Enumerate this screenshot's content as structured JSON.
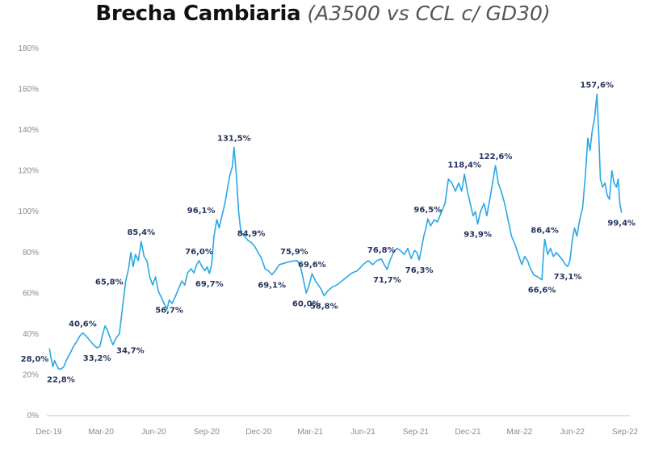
{
  "chart_data": {
    "type": "line",
    "title": "Brecha Cambiaria",
    "subtitle": "(A3500 vs CCL c/ GD30)",
    "xlabel": "",
    "ylabel": "",
    "ylim": [
      0,
      180
    ],
    "yticks": [
      "0%",
      "20%",
      "40%",
      "60%",
      "80%",
      "100%",
      "120%",
      "140%",
      "160%",
      "180%"
    ],
    "xticks": [
      "Dec-19",
      "Mar-20",
      "Jun-20",
      "Sep-20",
      "Dec-20",
      "Mar-21",
      "Jun-21",
      "Sep-21",
      "Dec-21",
      "Mar-22",
      "Jun-22",
      "Sep-22"
    ],
    "xtick_dates": [
      "2019-12-01",
      "2020-03-01",
      "2020-06-01",
      "2020-09-01",
      "2020-12-01",
      "2021-03-01",
      "2021-06-01",
      "2021-09-01",
      "2021-12-01",
      "2022-03-01",
      "2022-06-01",
      "2022-09-01"
    ],
    "grid": false,
    "line_color": "#2aa7e6",
    "label_color": "#26335e",
    "series": [
      {
        "points": [
          [
            "2019-12-02",
            33
          ],
          [
            "2019-12-05",
            28.0
          ],
          [
            "2019-12-08",
            24
          ],
          [
            "2019-12-11",
            27
          ],
          [
            "2019-12-14",
            25
          ],
          [
            "2019-12-18",
            23
          ],
          [
            "2019-12-22",
            22.8
          ],
          [
            "2019-12-27",
            24
          ],
          [
            "2020-01-02",
            28
          ],
          [
            "2020-01-08",
            31
          ],
          [
            "2020-01-13",
            34
          ],
          [
            "2020-01-18",
            36
          ],
          [
            "2020-01-24",
            39
          ],
          [
            "2020-01-29",
            40.6
          ],
          [
            "2020-02-04",
            39
          ],
          [
            "2020-02-10",
            37
          ],
          [
            "2020-02-16",
            35
          ],
          [
            "2020-02-23",
            33.2
          ],
          [
            "2020-02-28",
            34
          ],
          [
            "2020-03-04",
            40
          ],
          [
            "2020-03-08",
            44
          ],
          [
            "2020-03-12",
            42
          ],
          [
            "2020-03-17",
            38
          ],
          [
            "2020-03-22",
            34.7
          ],
          [
            "2020-03-27",
            38
          ],
          [
            "2020-04-02",
            40
          ],
          [
            "2020-04-07",
            52
          ],
          [
            "2020-04-13",
            65.8
          ],
          [
            "2020-04-18",
            72
          ],
          [
            "2020-04-22",
            80
          ],
          [
            "2020-04-26",
            73
          ],
          [
            "2020-04-30",
            79
          ],
          [
            "2020-05-05",
            76
          ],
          [
            "2020-05-10",
            85.4
          ],
          [
            "2020-05-15",
            78
          ],
          [
            "2020-05-20",
            76
          ],
          [
            "2020-05-25",
            68
          ],
          [
            "2020-05-30",
            64
          ],
          [
            "2020-06-04",
            68
          ],
          [
            "2020-06-09",
            61
          ],
          [
            "2020-06-14",
            58
          ],
          [
            "2020-06-19",
            55
          ],
          [
            "2020-06-24",
            52
          ],
          [
            "2020-06-28",
            56.7
          ],
          [
            "2020-07-03",
            55
          ],
          [
            "2020-07-08",
            58
          ],
          [
            "2020-07-14",
            62
          ],
          [
            "2020-07-20",
            66
          ],
          [
            "2020-07-25",
            64
          ],
          [
            "2020-07-30",
            70
          ],
          [
            "2020-08-05",
            72
          ],
          [
            "2020-08-10",
            70
          ],
          [
            "2020-08-15",
            74
          ],
          [
            "2020-08-19",
            76.0
          ],
          [
            "2020-08-24",
            73
          ],
          [
            "2020-08-29",
            71
          ],
          [
            "2020-09-02",
            73
          ],
          [
            "2020-09-06",
            69.7
          ],
          [
            "2020-09-10",
            74
          ],
          [
            "2020-09-14",
            88
          ],
          [
            "2020-09-19",
            96.1
          ],
          [
            "2020-09-23",
            92
          ],
          [
            "2020-09-28",
            98
          ],
          [
            "2020-10-03",
            104
          ],
          [
            "2020-10-08",
            112
          ],
          [
            "2020-10-12",
            118
          ],
          [
            "2020-10-16",
            122
          ],
          [
            "2020-10-19",
            131.5
          ],
          [
            "2020-10-23",
            118
          ],
          [
            "2020-10-27",
            100
          ],
          [
            "2020-10-31",
            90
          ],
          [
            "2020-11-06",
            88
          ],
          [
            "2020-11-12",
            86
          ],
          [
            "2020-11-18",
            84.9
          ],
          [
            "2020-11-24",
            83
          ],
          [
            "2020-11-30",
            80
          ],
          [
            "2020-12-06",
            77
          ],
          [
            "2020-12-12",
            72
          ],
          [
            "2020-12-18",
            71
          ],
          [
            "2020-12-24",
            69.1
          ],
          [
            "2020-12-30",
            71
          ],
          [
            "2021-01-06",
            74
          ],
          [
            "2021-01-12",
            74.5
          ],
          [
            "2021-01-18",
            75
          ],
          [
            "2021-01-25",
            75.5
          ],
          [
            "2021-02-01",
            75.9
          ],
          [
            "2021-02-06",
            76
          ],
          [
            "2021-02-11",
            74
          ],
          [
            "2021-02-16",
            68
          ],
          [
            "2021-02-22",
            60.0
          ],
          [
            "2021-02-27",
            64
          ],
          [
            "2021-03-04",
            69.6
          ],
          [
            "2021-03-10",
            66
          ],
          [
            "2021-03-15",
            64
          ],
          [
            "2021-03-20",
            62
          ],
          [
            "2021-03-25",
            58.8
          ],
          [
            "2021-03-31",
            61
          ],
          [
            "2021-04-08",
            63
          ],
          [
            "2021-04-16",
            64
          ],
          [
            "2021-04-25",
            66
          ],
          [
            "2021-05-04",
            68
          ],
          [
            "2021-05-13",
            70
          ],
          [
            "2021-05-22",
            71
          ],
          [
            "2021-06-01",
            74
          ],
          [
            "2021-06-10",
            76
          ],
          [
            "2021-06-18",
            74
          ],
          [
            "2021-06-25",
            76
          ],
          [
            "2021-07-03",
            76.8
          ],
          [
            "2021-07-08",
            74
          ],
          [
            "2021-07-13",
            71.7
          ],
          [
            "2021-07-18",
            76
          ],
          [
            "2021-07-24",
            80
          ],
          [
            "2021-07-30",
            82
          ],
          [
            "2021-08-05",
            81
          ],
          [
            "2021-08-12",
            79
          ],
          [
            "2021-08-18",
            82
          ],
          [
            "2021-08-24",
            77
          ],
          [
            "2021-08-30",
            81
          ],
          [
            "2021-09-03",
            80
          ],
          [
            "2021-09-07",
            76.3
          ],
          [
            "2021-09-11",
            82
          ],
          [
            "2021-09-15",
            88
          ],
          [
            "2021-09-19",
            92
          ],
          [
            "2021-09-22",
            96.5
          ],
          [
            "2021-09-27",
            93
          ],
          [
            "2021-10-03",
            96
          ],
          [
            "2021-10-09",
            95
          ],
          [
            "2021-10-16",
            100
          ],
          [
            "2021-10-22",
            104
          ],
          [
            "2021-10-28",
            116
          ],
          [
            "2021-11-03",
            114
          ],
          [
            "2021-11-09",
            110
          ],
          [
            "2021-11-15",
            114
          ],
          [
            "2021-11-20",
            110
          ],
          [
            "2021-11-25",
            118.4
          ],
          [
            "2021-11-30",
            110
          ],
          [
            "2021-12-05",
            104
          ],
          [
            "2021-12-10",
            98
          ],
          [
            "2021-12-14",
            100
          ],
          [
            "2021-12-18",
            93.9
          ],
          [
            "2021-12-23",
            100
          ],
          [
            "2021-12-29",
            104
          ],
          [
            "2022-01-03",
            98
          ],
          [
            "2022-01-08",
            106
          ],
          [
            "2022-01-13",
            114
          ],
          [
            "2022-01-18",
            122.6
          ],
          [
            "2022-01-23",
            114
          ],
          [
            "2022-01-28",
            110
          ],
          [
            "2022-02-03",
            104
          ],
          [
            "2022-02-09",
            96
          ],
          [
            "2022-02-15",
            88
          ],
          [
            "2022-02-21",
            84
          ],
          [
            "2022-02-27",
            79
          ],
          [
            "2022-03-05",
            74
          ],
          [
            "2022-03-10",
            78
          ],
          [
            "2022-03-15",
            76
          ],
          [
            "2022-03-20",
            72
          ],
          [
            "2022-03-26",
            69
          ],
          [
            "2022-04-02",
            68
          ],
          [
            "2022-04-09",
            66.6
          ],
          [
            "2022-04-12",
            80
          ],
          [
            "2022-04-14",
            86.4
          ],
          [
            "2022-04-19",
            79
          ],
          [
            "2022-04-24",
            82
          ],
          [
            "2022-04-29",
            78
          ],
          [
            "2022-05-04",
            80
          ],
          [
            "2022-05-10",
            78
          ],
          [
            "2022-05-16",
            76
          ],
          [
            "2022-05-20",
            74
          ],
          [
            "2022-05-24",
            73.1
          ],
          [
            "2022-05-28",
            76
          ],
          [
            "2022-06-01",
            86
          ],
          [
            "2022-06-05",
            92
          ],
          [
            "2022-06-09",
            88
          ],
          [
            "2022-06-14",
            96
          ],
          [
            "2022-06-19",
            102
          ],
          [
            "2022-06-24",
            118
          ],
          [
            "2022-06-28",
            136
          ],
          [
            "2022-07-02",
            130
          ],
          [
            "2022-07-06",
            140
          ],
          [
            "2022-07-10",
            146
          ],
          [
            "2022-07-14",
            157.6
          ],
          [
            "2022-07-17",
            140
          ],
          [
            "2022-07-20",
            116
          ],
          [
            "2022-07-24",
            112
          ],
          [
            "2022-07-28",
            114
          ],
          [
            "2022-08-01",
            108
          ],
          [
            "2022-08-05",
            106
          ],
          [
            "2022-08-09",
            120
          ],
          [
            "2022-08-13",
            114
          ],
          [
            "2022-08-17",
            112
          ],
          [
            "2022-08-20",
            116
          ],
          [
            "2022-08-23",
            104
          ],
          [
            "2022-08-26",
            99.4
          ]
        ]
      }
    ],
    "annotations": [
      {
        "date": "2019-12-05",
        "value": 28.0,
        "text": "28,0%",
        "place": "left"
      },
      {
        "date": "2019-12-22",
        "value": 22.8,
        "text": "22,8%",
        "place": "below"
      },
      {
        "date": "2020-01-29",
        "value": 40.6,
        "text": "40,6%",
        "place": "above"
      },
      {
        "date": "2020-02-23",
        "value": 33.2,
        "text": "33,2%",
        "place": "below"
      },
      {
        "date": "2020-03-22",
        "value": 34.7,
        "text": "34,7%",
        "place": "belowright"
      },
      {
        "date": "2020-04-13",
        "value": 65.8,
        "text": "65,8%",
        "place": "left"
      },
      {
        "date": "2020-05-10",
        "value": 85.4,
        "text": "85,4%",
        "place": "above"
      },
      {
        "date": "2020-06-28",
        "value": 56.7,
        "text": "56,7%",
        "place": "below"
      },
      {
        "date": "2020-08-19",
        "value": 76.0,
        "text": "76,0%",
        "place": "above"
      },
      {
        "date": "2020-09-06",
        "value": 69.7,
        "text": "69,7%",
        "place": "below"
      },
      {
        "date": "2020-09-19",
        "value": 96.1,
        "text": "96,1%",
        "place": "aboveleft"
      },
      {
        "date": "2020-10-19",
        "value": 131.5,
        "text": "131,5%",
        "place": "above"
      },
      {
        "date": "2020-11-18",
        "value": 84.9,
        "text": "84,9%",
        "place": "above"
      },
      {
        "date": "2020-12-24",
        "value": 69.1,
        "text": "69,1%",
        "place": "below"
      },
      {
        "date": "2021-02-01",
        "value": 75.9,
        "text": "75,9%",
        "place": "above"
      },
      {
        "date": "2021-02-22",
        "value": 60.0,
        "text": "60,0%",
        "place": "below"
      },
      {
        "date": "2021-03-04",
        "value": 69.6,
        "text": "69,6%",
        "place": "above"
      },
      {
        "date": "2021-03-25",
        "value": 58.8,
        "text": "58,8%",
        "place": "below"
      },
      {
        "date": "2021-07-03",
        "value": 76.8,
        "text": "76,8%",
        "place": "above"
      },
      {
        "date": "2021-07-13",
        "value": 71.7,
        "text": "71,7%",
        "place": "below"
      },
      {
        "date": "2021-09-07",
        "value": 76.3,
        "text": "76,3%",
        "place": "below"
      },
      {
        "date": "2021-09-22",
        "value": 96.5,
        "text": "96,5%",
        "place": "above"
      },
      {
        "date": "2021-11-25",
        "value": 118.4,
        "text": "118,4%",
        "place": "above"
      },
      {
        "date": "2021-12-18",
        "value": 93.9,
        "text": "93,9%",
        "place": "below"
      },
      {
        "date": "2022-01-18",
        "value": 122.6,
        "text": "122,6%",
        "place": "above"
      },
      {
        "date": "2022-04-09",
        "value": 66.6,
        "text": "66,6%",
        "place": "below"
      },
      {
        "date": "2022-04-14",
        "value": 86.4,
        "text": "86,4%",
        "place": "above"
      },
      {
        "date": "2022-05-24",
        "value": 73.1,
        "text": "73,1%",
        "place": "below"
      },
      {
        "date": "2022-07-14",
        "value": 157.6,
        "text": "157,6%",
        "place": "above"
      },
      {
        "date": "2022-08-26",
        "value": 99.4,
        "text": "99,4%",
        "place": "below"
      }
    ]
  }
}
